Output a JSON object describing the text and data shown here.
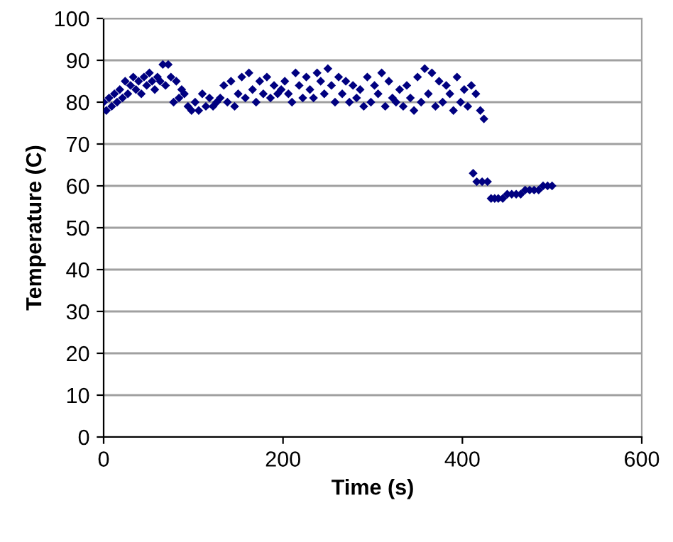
{
  "chart_data": {
    "type": "scatter",
    "xlabel": "Time (s)",
    "ylabel": "Temperature (C)",
    "xlim": [
      0,
      600
    ],
    "ylim": [
      0,
      100
    ],
    "xticks": [
      0,
      200,
      400,
      600
    ],
    "yticks": [
      0,
      10,
      20,
      30,
      40,
      50,
      60,
      70,
      80,
      90,
      100
    ],
    "grid": "y",
    "marker": "diamond",
    "series": [
      {
        "color": "#000080",
        "x": [
          0,
          3,
          6,
          9,
          12,
          15,
          18,
          21,
          24,
          27,
          30,
          33,
          36,
          39,
          42,
          45,
          48,
          51,
          54,
          57,
          60,
          63,
          66,
          69,
          72,
          75,
          78,
          81,
          84,
          87,
          90,
          94,
          98,
          102,
          106,
          110,
          114,
          118,
          122,
          126,
          130,
          134,
          138,
          142,
          146,
          150,
          154,
          158,
          162,
          166,
          170,
          174,
          178,
          182,
          186,
          190,
          194,
          198,
          202,
          206,
          210,
          214,
          218,
          222,
          226,
          230,
          234,
          238,
          242,
          246,
          250,
          254,
          258,
          262,
          266,
          270,
          274,
          278,
          282,
          286,
          290,
          294,
          298,
          302,
          306,
          310,
          314,
          318,
          322,
          326,
          330,
          334,
          338,
          342,
          346,
          350,
          354,
          358,
          362,
          366,
          370,
          374,
          378,
          382,
          386,
          390,
          394,
          398,
          402,
          406,
          410,
          415,
          420,
          424,
          412,
          416,
          422,
          428,
          432,
          436,
          440,
          445,
          450,
          455,
          460,
          465,
          470,
          475,
          480,
          485,
          490,
          495,
          500
        ],
        "values": [
          80,
          78,
          81,
          79,
          82,
          80,
          83,
          81,
          85,
          82,
          84,
          86,
          83,
          85,
          82,
          86,
          84,
          87,
          85,
          83,
          86,
          85,
          89,
          84,
          89,
          86,
          80,
          85,
          81,
          83,
          82,
          79,
          78,
          80,
          78,
          82,
          79,
          81,
          79,
          80,
          81,
          84,
          80,
          85,
          79,
          82,
          86,
          81,
          87,
          83,
          80,
          85,
          82,
          86,
          81,
          84,
          82,
          83,
          85,
          82,
          80,
          87,
          84,
          81,
          86,
          83,
          81,
          87,
          85,
          82,
          88,
          84,
          80,
          86,
          82,
          85,
          80,
          84,
          81,
          83,
          79,
          86,
          80,
          84,
          82,
          87,
          79,
          85,
          81,
          80,
          83,
          79,
          84,
          81,
          78,
          86,
          80,
          88,
          82,
          87,
          79,
          85,
          80,
          84,
          82,
          78,
          86,
          80,
          83,
          79,
          84,
          82,
          78,
          76,
          63,
          61,
          61,
          61,
          57,
          57,
          57,
          57,
          58,
          58,
          58,
          58,
          59,
          59,
          59,
          59,
          60,
          60,
          60
        ]
      }
    ]
  }
}
